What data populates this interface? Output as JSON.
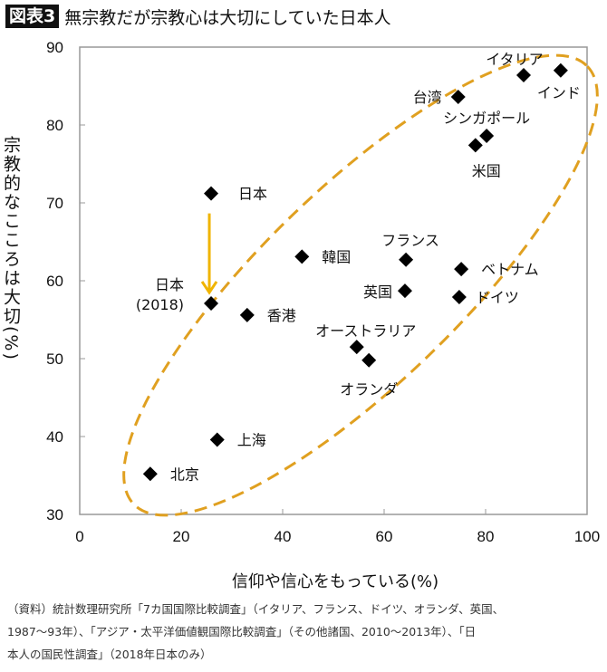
{
  "header": {
    "badge": "図表3",
    "title": "無宗教だが宗教心は大切にしていた日本人"
  },
  "chart_data": {
    "type": "scatter",
    "xlabel": "信仰や信心をもっている(%)",
    "ylabel": "宗教的なこころは大切(%)",
    "xlim": [
      0,
      100
    ],
    "ylim": [
      30,
      90
    ],
    "xticks": [
      0,
      20,
      40,
      60,
      80,
      100
    ],
    "yticks": [
      30,
      40,
      50,
      60,
      70,
      80,
      90
    ],
    "grid": false,
    "points": [
      {
        "label": "日本",
        "x": 25.9,
        "y": 71.2
      },
      {
        "label": "日本\n(2018)",
        "x": 25.9,
        "y": 57.1
      },
      {
        "label": "香港",
        "x": 33.0,
        "y": 55.6
      },
      {
        "label": "韓国",
        "x": 43.8,
        "y": 63.1
      },
      {
        "label": "上海",
        "x": 27.1,
        "y": 39.6
      },
      {
        "label": "北京",
        "x": 13.9,
        "y": 35.2
      },
      {
        "label": "フランス",
        "x": 64.3,
        "y": 62.7
      },
      {
        "label": "英国",
        "x": 64.1,
        "y": 58.7
      },
      {
        "label": "ベトナム",
        "x": 75.2,
        "y": 61.5
      },
      {
        "label": "ドイツ",
        "x": 74.8,
        "y": 57.9
      },
      {
        "label": "オーストラリア",
        "x": 54.6,
        "y": 51.5
      },
      {
        "label": "オランダ",
        "x": 57.0,
        "y": 49.8
      },
      {
        "label": "台湾",
        "x": 74.6,
        "y": 83.6
      },
      {
        "label": "イタリア",
        "x": 87.5,
        "y": 86.4
      },
      {
        "label": "インド",
        "x": 94.8,
        "y": 87.0
      },
      {
        "label": "シンガポール",
        "x": 80.2,
        "y": 78.6
      },
      {
        "label": "米国",
        "x": 78.0,
        "y": 77.4
      }
    ],
    "annotations": [
      {
        "type": "arrow",
        "from": "日本",
        "to": "日本\n(2018)",
        "color": "#f0b400"
      },
      {
        "type": "dashed-ellipse",
        "color": "#e0a020"
      }
    ]
  },
  "footnote": [
    "（資料）統計数理研究所「7カ国国際比較調査」（イタリア、フランス、ドイツ、オランダ、英国、",
    "1987〜93年）、「アジア・太平洋価値観国際比較調査」（その他諸国、2010〜2013年）、「日",
    "本人の国民性調査」（2018年日本のみ）"
  ]
}
